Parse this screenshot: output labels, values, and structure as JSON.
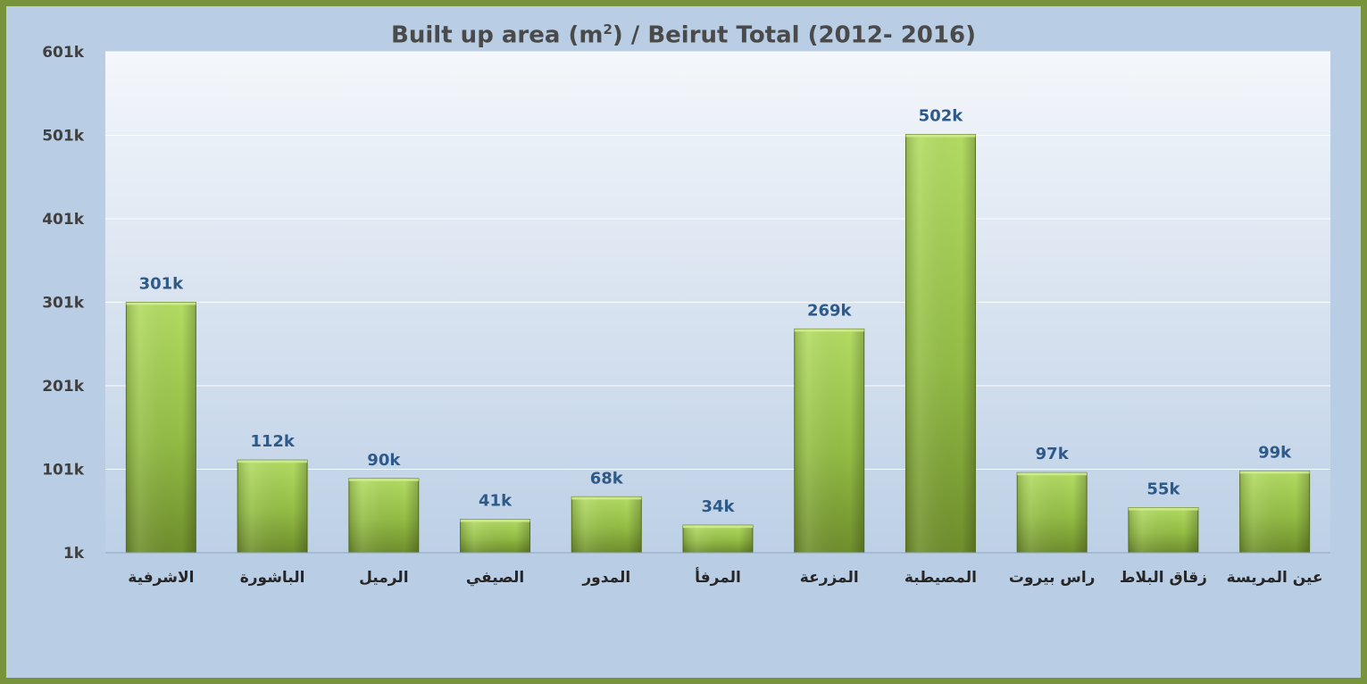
{
  "chart_data": {
    "type": "bar",
    "title_main": "Built up area (m",
    "title_sup": "2",
    "title_tail": ") / Beirut Total (2012- 2016)",
    "xlabel": "",
    "ylabel": "",
    "ylim": [
      1000,
      601000
    ],
    "yticks": [
      {
        "value": 1000,
        "label": "1k"
      },
      {
        "value": 101000,
        "label": "101k"
      },
      {
        "value": 201000,
        "label": "201k"
      },
      {
        "value": 301000,
        "label": "301k"
      },
      {
        "value": 401000,
        "label": "401k"
      },
      {
        "value": 501000,
        "label": "501k"
      },
      {
        "value": 601000,
        "label": "601k"
      }
    ],
    "categories": [
      "الاشرفية",
      "الباشورة",
      "الرميل",
      "الصيفي",
      "المدور",
      "المرفأ",
      "المزرعة",
      "المصيطبة",
      "راس بيروت",
      "زقاق البلاط",
      "عين المريسة"
    ],
    "values": [
      301000,
      112000,
      90000,
      41000,
      68000,
      34000,
      269000,
      502000,
      97000,
      55000,
      99000
    ],
    "data_labels": [
      "301k",
      "112k",
      "90k",
      "41k",
      "68k",
      "34k",
      "269k",
      "502k",
      "97k",
      "55k",
      "99k"
    ],
    "grid": true,
    "legend": "none",
    "colors": {
      "bar_top": "#a9d35a",
      "bar_bottom": "#6f8e2c",
      "frame": "#77933c",
      "label": "#2e5a8a"
    }
  }
}
